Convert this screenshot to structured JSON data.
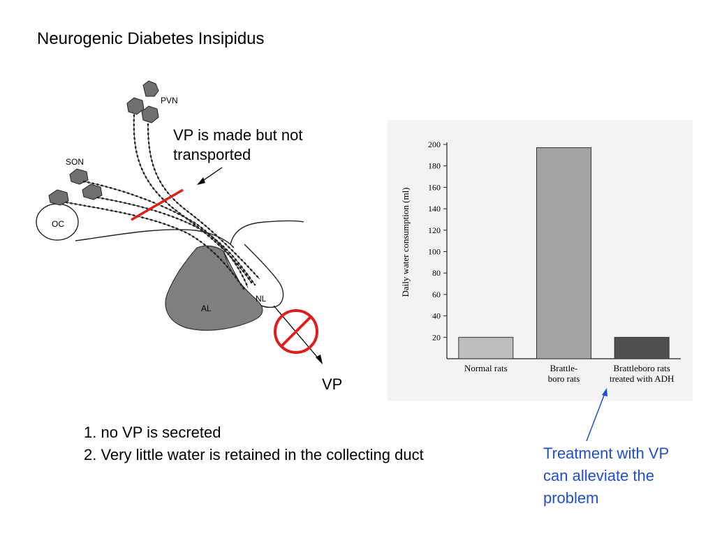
{
  "slide": {
    "title": "Neurogenic Diabetes Insipidus",
    "caption": "VP is made but not\ntransported",
    "vp_output": "VP",
    "notes": [
      "1. no VP is secreted",
      "2. Very little water is retained in the collecting duct"
    ],
    "treatment_note": "Treatment with VP\ncan alleviate the\nproblem"
  },
  "diagram": {
    "labels": {
      "pvn": "PVN",
      "son": "SON",
      "oc": "OC",
      "al": "AL",
      "nl": "NL"
    },
    "colors": {
      "block_mark": "#dd1f1f",
      "arrow": "#1f4fcf"
    }
  },
  "chart_data": {
    "type": "bar",
    "categories": [
      "Normal rats",
      "Brattle-\nboro rats",
      "Brattleboro rats\ntreated with ADH"
    ],
    "values": [
      20,
      197,
      20
    ],
    "ylabel": "Daily water consumption (ml)",
    "xlabel": "",
    "ylim": [
      0,
      200
    ],
    "yticks": [
      20,
      40,
      60,
      80,
      100,
      120,
      140,
      160,
      180,
      200
    ],
    "bar_colors": [
      "#bdbdbd",
      "#a4a4a4",
      "#505050"
    ],
    "grid": false
  }
}
